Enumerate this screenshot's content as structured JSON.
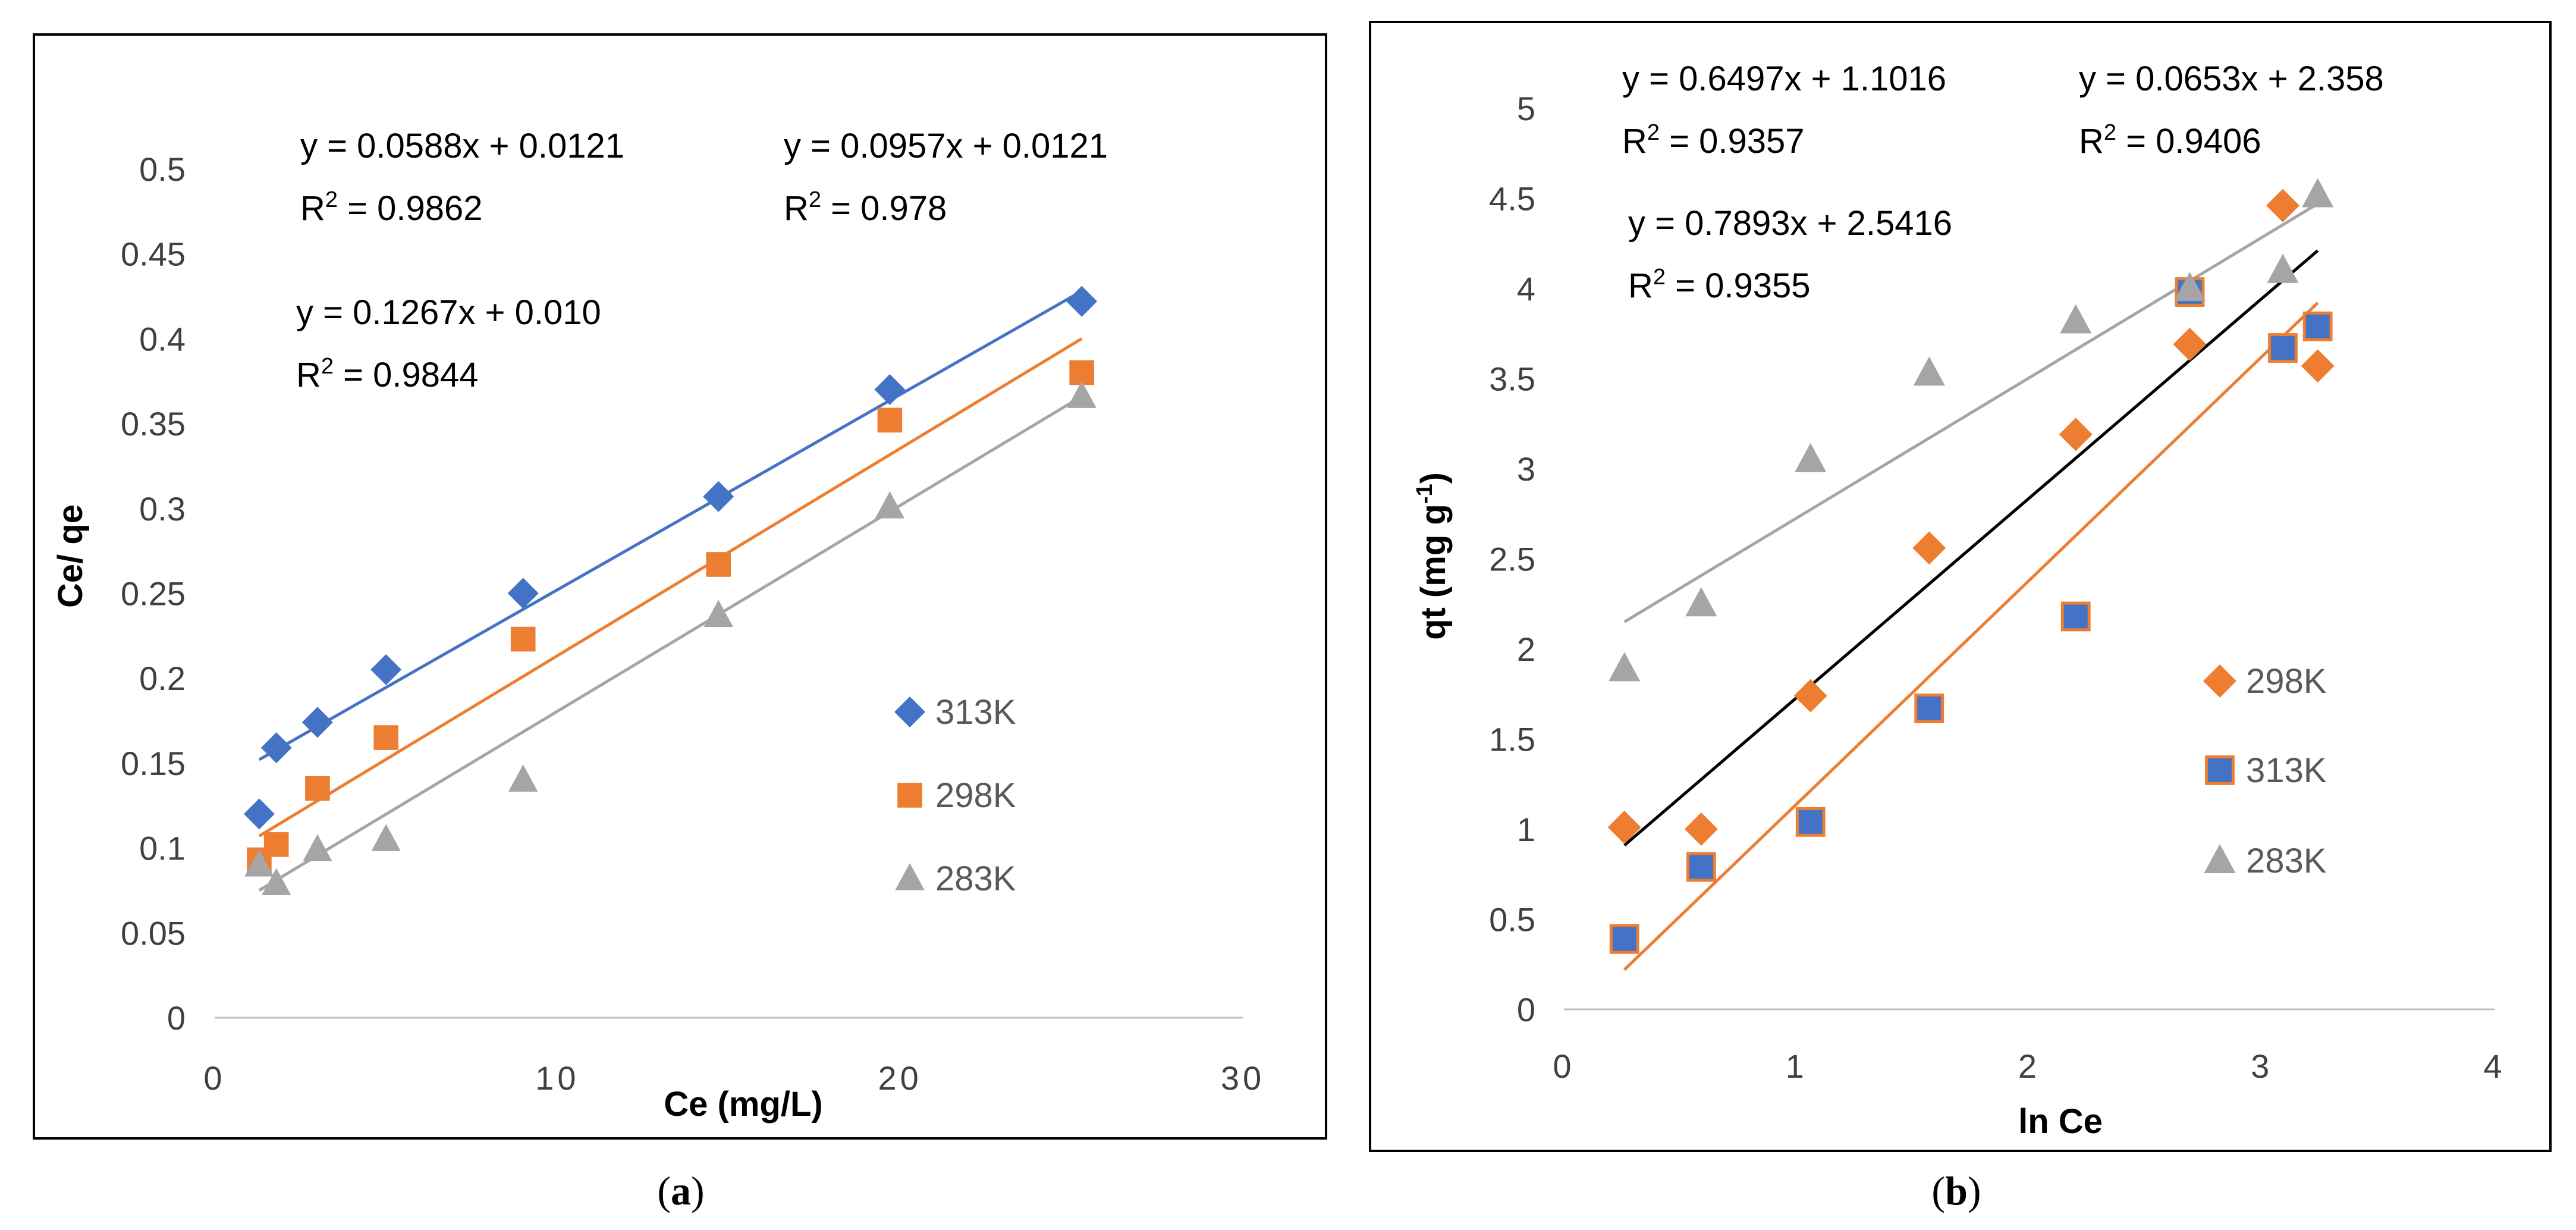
{
  "colors": {
    "orange": "#ED7D31",
    "blue": "#4472C4",
    "gray": "#A5A5A5",
    "black": "#000000"
  },
  "chart_data": [
    {
      "type": "scatter",
      "caption_letter": "a",
      "xlabel": "Ce (mg/L)",
      "ylabel": "Ce/ qe",
      "xlim": [
        0,
        30
      ],
      "ylim": [
        0,
        0.5
      ],
      "xticks": [
        "0",
        "10",
        "20",
        "30"
      ],
      "yticks": [
        "0",
        "0.05",
        "0.1",
        "0.15",
        "0.2",
        "0.25",
        "0.3",
        "0.35",
        "0.4",
        "0.45",
        "0.5"
      ],
      "series": [
        {
          "name": "313K",
          "color": "#4472C4",
          "marker": "diamond",
          "x": [
            1.3,
            1.8,
            3.0,
            5.0,
            9.0,
            14.7,
            19.7,
            25.3
          ],
          "y": [
            0.12,
            0.159,
            0.174,
            0.205,
            0.25,
            0.307,
            0.37,
            0.422
          ],
          "trend_x": [
            1.3,
            25.3
          ],
          "trend_y": [
            0.152,
            0.428
          ]
        },
        {
          "name": "298K",
          "color": "#ED7D31",
          "marker": "square",
          "x": [
            1.3,
            1.8,
            3.0,
            5.0,
            9.0,
            14.7,
            19.7,
            25.3
          ],
          "y": [
            0.093,
            0.102,
            0.135,
            0.165,
            0.223,
            0.267,
            0.352,
            0.38
          ],
          "trend_x": [
            1.3,
            25.3
          ],
          "trend_y": [
            0.107,
            0.4
          ]
        },
        {
          "name": "283K",
          "color": "#A5A5A5",
          "marker": "triangle",
          "x": [
            1.3,
            1.8,
            3.0,
            5.0,
            9.0,
            14.7,
            19.7,
            25.3
          ],
          "y": [
            0.09,
            0.079,
            0.099,
            0.105,
            0.14,
            0.237,
            0.301,
            0.366
          ],
          "trend_x": [
            1.3,
            25.3
          ],
          "trend_y": [
            0.075,
            0.366
          ]
        }
      ],
      "legend": [
        "313K",
        "298K",
        "283K"
      ],
      "annotations": [
        {
          "equation": "y = 0.0588x + 0.0121",
          "r2": "0.9862"
        },
        {
          "equation": "y = 0.0957x + 0.0121",
          "r2": "0.978"
        },
        {
          "equation": "y = 0.1267x + 0.010",
          "r2": "0.9844"
        }
      ]
    },
    {
      "type": "scatter",
      "caption_letter": "b",
      "xlabel": "ln Ce",
      "ylabel": "qt (mg g",
      "ylabel_sup": "-1",
      "ylabel_end": ")",
      "xlim": [
        0,
        4
      ],
      "ylim": [
        0,
        5
      ],
      "xticks": [
        "0",
        "1",
        "2",
        "3",
        "4"
      ],
      "yticks": [
        "0",
        "0.5",
        "1",
        "1.5",
        "2",
        "2.5",
        "3",
        "3.5",
        "4",
        "4.5",
        "5"
      ],
      "series": [
        {
          "name": "298K",
          "color": "#ED7D31",
          "marker": "diamond",
          "x": [
            0.26,
            0.59,
            1.06,
            1.57,
            2.2,
            2.69,
            3.09,
            3.24
          ],
          "y": [
            1.01,
            1.0,
            1.74,
            2.56,
            3.19,
            3.69,
            4.46,
            3.57
          ],
          "trend_x": [
            0.26,
            3.24
          ],
          "trend_y": [
            0.91,
            4.21
          ],
          "trend_color": "#000000"
        },
        {
          "name": "313K",
          "color": "#4472C4",
          "marker": "square",
          "x": [
            0.26,
            0.59,
            1.06,
            1.57,
            2.2,
            2.69,
            3.09,
            3.24
          ],
          "y": [
            0.39,
            0.79,
            1.04,
            1.67,
            2.18,
            3.98,
            3.67,
            3.79
          ],
          "trend_x": [
            0.26,
            3.24
          ],
          "trend_y": [
            0.22,
            3.92
          ],
          "trend_color": "#ED7D31"
        },
        {
          "name": "283K",
          "color": "#A5A5A5",
          "marker": "triangle",
          "x": [
            0.26,
            0.59,
            1.06,
            1.57,
            2.2,
            2.69,
            3.09,
            3.24
          ],
          "y": [
            1.89,
            2.25,
            3.05,
            3.53,
            3.82,
            4.0,
            4.1,
            4.52
          ],
          "trend_x": [
            0.26,
            3.24
          ],
          "trend_y": [
            2.15,
            4.47
          ],
          "trend_color": "#A5A5A5"
        }
      ],
      "legend": [
        "298K",
        "313K",
        "283K"
      ],
      "annotations": [
        {
          "equation": "y = 0.6497x + 1.1016",
          "r2": "0.9357"
        },
        {
          "equation": "y = 0.0653x + 2.358",
          "r2": "0.9406"
        },
        {
          "equation": "y = 0.7893x + 2.5416",
          "r2": "0.9355"
        }
      ]
    }
  ]
}
